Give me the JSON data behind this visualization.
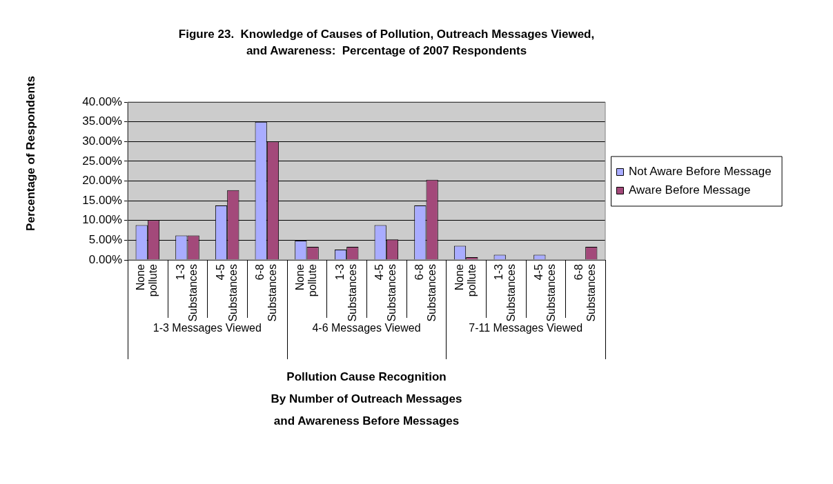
{
  "chart_data": {
    "type": "bar",
    "title": "Figure 23.  Knowledge of Causes of Pollution, Outreach Messages Viewed,\nand Awareness:  Percentage of 2007 Respondents",
    "xlabel": "Pollution Cause Recognition\nBy Number of Outreach Messages\nand Awareness Before Messages",
    "ylabel": "Percentage of Respondents",
    "categories": [
      "None pollute",
      "1-3 Substances",
      "4-5 Substances",
      "6-8 Substances",
      "None pollute",
      "1-3 Substances",
      "4-5 Substances",
      "6-8 Substances",
      "None pollute",
      "1-3 Substances",
      "4-5 Substances",
      "6-8 Substances"
    ],
    "annotations": [
      "1-3 Messages Viewed",
      "4-6 Messages Viewed",
      "7-11 Messages Viewed"
    ],
    "series": [
      {
        "name": "Not Aware Before Message",
        "color": "#a9acff",
        "values": [
          8.8,
          6.2,
          13.8,
          35,
          4.9,
          2.6,
          8.8,
          13.8,
          3.6,
          1.3,
          1.3,
          0
        ]
      },
      {
        "name": "Aware Before Message",
        "color": "#a3497a",
        "values": [
          10.1,
          6.2,
          17.7,
          30,
          3.3,
          3.3,
          5.2,
          20.3,
          0.7,
          0,
          0,
          3.3
        ]
      }
    ],
    "ylim": [
      0,
      40
    ],
    "yticks": [
      {
        "value": 0,
        "label": "0.00%"
      },
      {
        "value": 5,
        "label": "5.00%"
      },
      {
        "value": 10,
        "label": "10.00%"
      },
      {
        "value": 15,
        "label": "15.00%"
      },
      {
        "value": 20,
        "label": "20.00%"
      },
      {
        "value": 25,
        "label": "25.00%"
      },
      {
        "value": 30,
        "label": "30.00%"
      },
      {
        "value": 35,
        "label": "35.00%"
      },
      {
        "value": 40,
        "label": "40.00%"
      }
    ],
    "grid": "y",
    "legend": "right"
  }
}
